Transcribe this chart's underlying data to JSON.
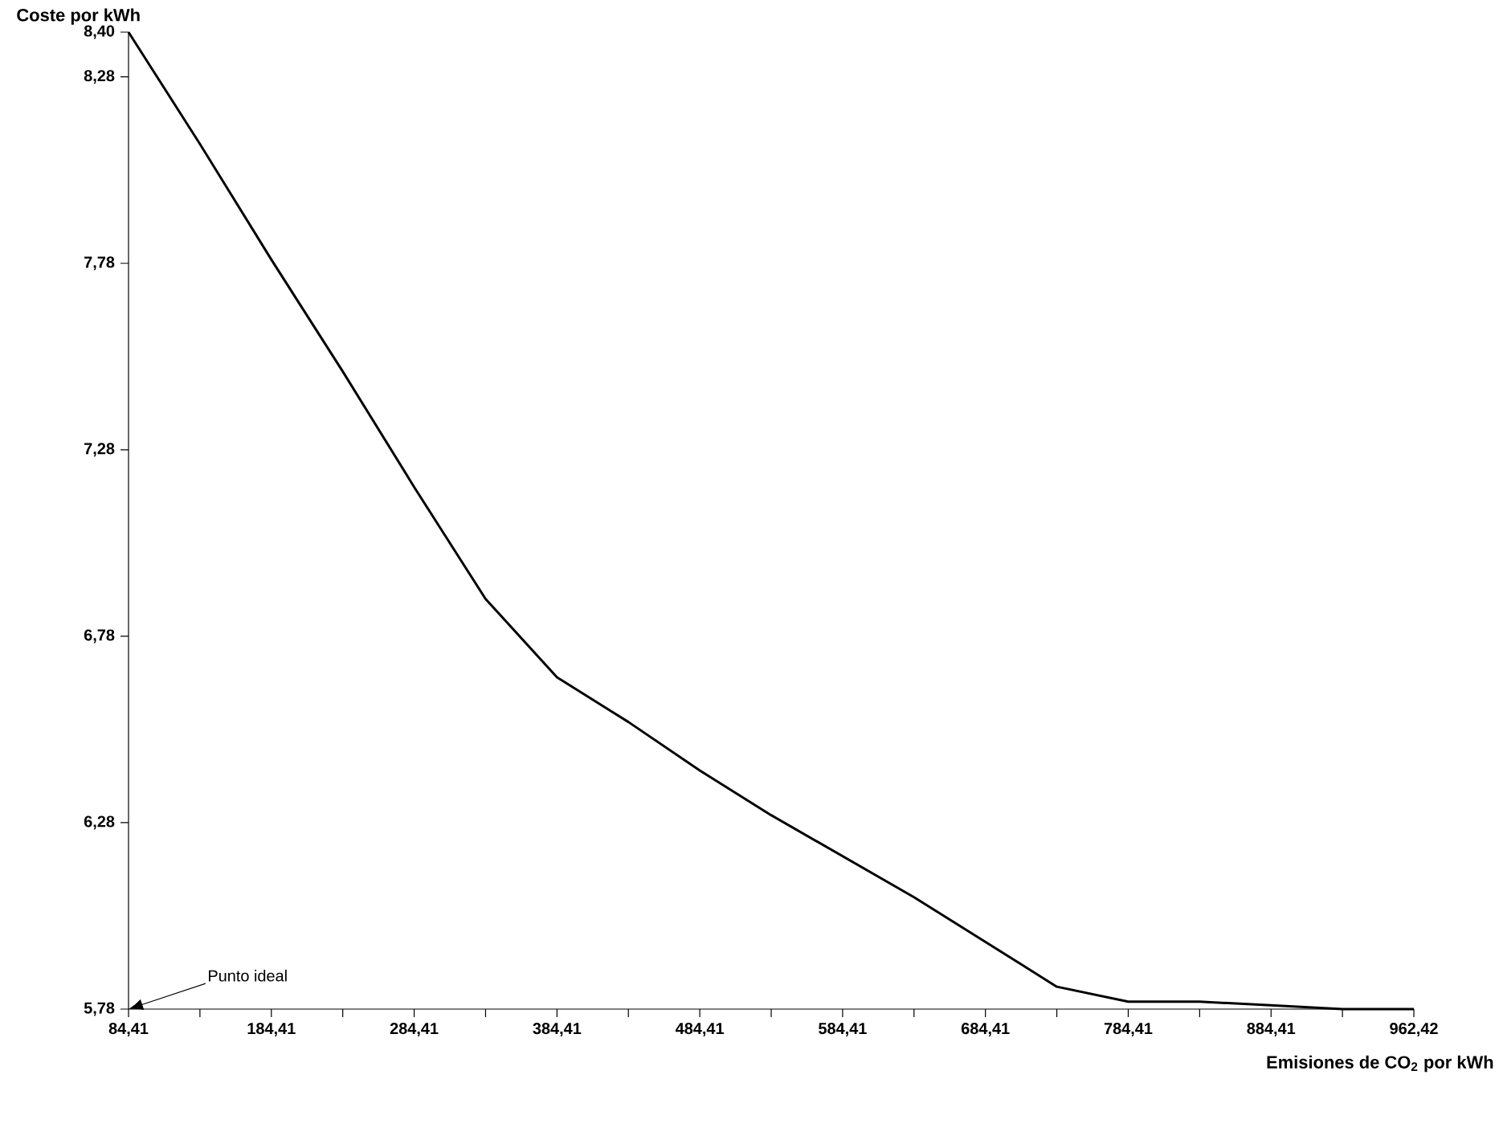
{
  "chart_data": {
    "type": "line",
    "xlabel": "Emisiones de CO$_{2}$ por kWh",
    "ylabel": "Coste por kWh",
    "categories": [
      "84,41",
      null,
      "184,41",
      null,
      "284,41",
      null,
      "384,41",
      null,
      "484,41",
      null,
      "584,41",
      null,
      "684,41",
      null,
      "784,41",
      null,
      "884,41",
      null,
      "962,42"
    ],
    "series": [
      {
        "color": "#000000",
        "values": [
          8.4,
          8.1,
          7.79,
          7.49,
          7.18,
          6.88,
          6.67,
          6.55,
          6.42,
          6.3,
          6.19,
          6.08,
          5.96,
          5.84,
          5.8,
          5.8,
          5.79,
          5.78,
          5.78
        ]
      }
    ],
    "ylim": [
      5.78,
      8.4
    ],
    "yticks": [
      {
        "value": 5.78,
        "label": "5,78"
      },
      {
        "value": 6.28,
        "label": "6,28"
      },
      {
        "value": 6.78,
        "label": "6,78"
      },
      {
        "value": 7.28,
        "label": "7,28"
      },
      {
        "value": 7.78,
        "label": "7,78"
      },
      {
        "value": 8.28,
        "label": "8,28"
      },
      {
        "value": 8.4,
        "label": "8,40"
      }
    ],
    "annotations": [
      "Punto ideal"
    ]
  }
}
